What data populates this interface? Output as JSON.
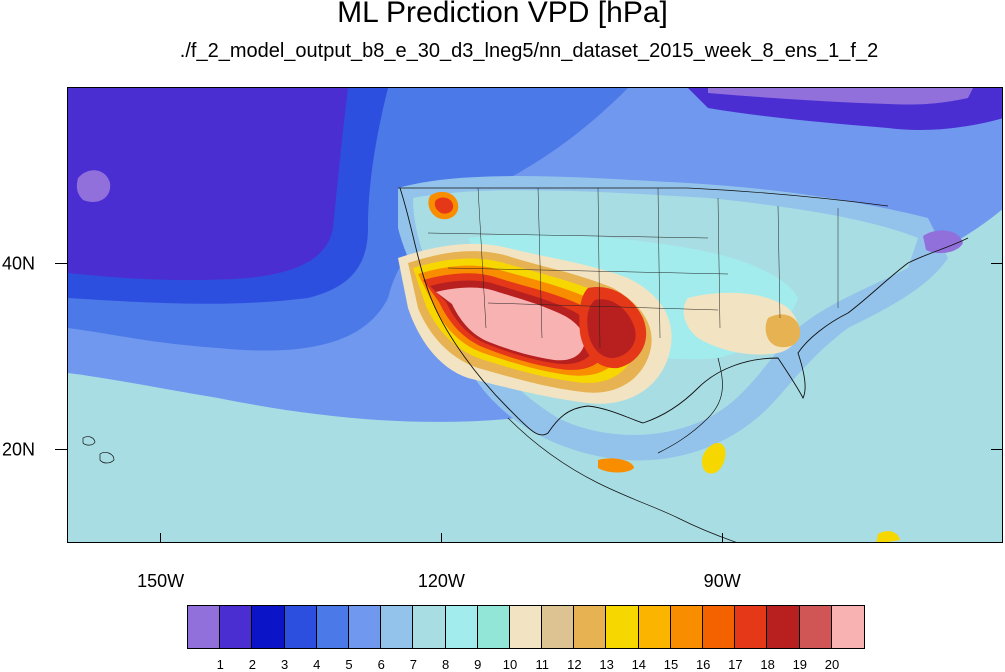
{
  "title": "ML Prediction VPD [hPa]",
  "subtitle": "./f_2_model_output_b8_e_30_d3_lneg5/nn_dataset_2015_week_8_ens_1_f_2",
  "map": {
    "lon_range": [
      -160,
      -60
    ],
    "lat_range": [
      10,
      59
    ],
    "x_ticks": [
      {
        "lon": -150,
        "label": "150W"
      },
      {
        "lon": -120,
        "label": "120W"
      },
      {
        "lon": -90,
        "label": "90W"
      }
    ],
    "y_ticks": [
      {
        "lat": 40,
        "label": "40N"
      },
      {
        "lat": 20,
        "label": "20N"
      }
    ]
  },
  "colorbar": {
    "colors": [
      "#9170dc",
      "#4a2ed2",
      "#0c14c8",
      "#2d4fe0",
      "#4c79e8",
      "#6f98ee",
      "#93c3eb",
      "#a8dde3",
      "#a2ecee",
      "#92e6d8",
      "#f2e4c2",
      "#ddc292",
      "#e7b352",
      "#f7d700",
      "#fbb400",
      "#f98d00",
      "#f46200",
      "#e43818",
      "#b82020",
      "#d05656",
      "#f8b2b2"
    ],
    "labels": [
      "1",
      "2",
      "3",
      "4",
      "5",
      "6",
      "7",
      "8",
      "9",
      "10",
      "11",
      "12",
      "13",
      "14",
      "15",
      "16",
      "17",
      "18",
      "19",
      "20"
    ]
  }
}
